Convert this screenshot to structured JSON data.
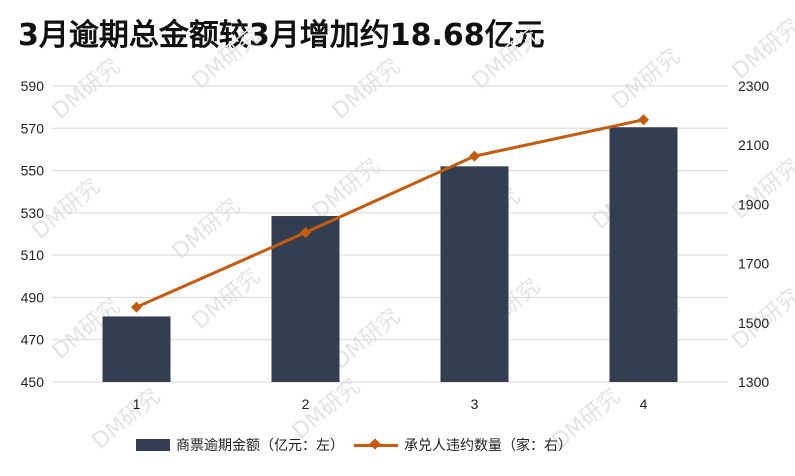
{
  "title": "3月逾期总金额较3月增加约18.68亿元",
  "watermark_text": "DM研究",
  "colors": {
    "bar": "#333F50",
    "line": "#C55A11",
    "grid": "#D9D9D9"
  },
  "legend": {
    "bar_label": "商票逾期金额（亿元：左）",
    "line_label": "承兑人违约数量（家：右）"
  },
  "chart_data": {
    "type": "bar",
    "categories": [
      "1",
      "2",
      "3",
      "4"
    ],
    "series": [
      {
        "name": "商票逾期金额（亿元：左）",
        "type": "bar",
        "axis": "left",
        "values": [
          481,
          528.5,
          552,
          570.5
        ]
      },
      {
        "name": "承兑人违约数量（家：右）",
        "type": "line",
        "axis": "right",
        "values": [
          1553,
          1805,
          2063,
          2186
        ]
      }
    ],
    "y_left": {
      "min": 450,
      "max": 590,
      "ticks": [
        450,
        470,
        490,
        510,
        530,
        550,
        570,
        590
      ]
    },
    "y_right": {
      "min": 1300,
      "max": 2300,
      "ticks": [
        1300,
        1500,
        1700,
        1900,
        2100,
        2300
      ]
    },
    "grid": true,
    "legend_position": "bottom"
  }
}
